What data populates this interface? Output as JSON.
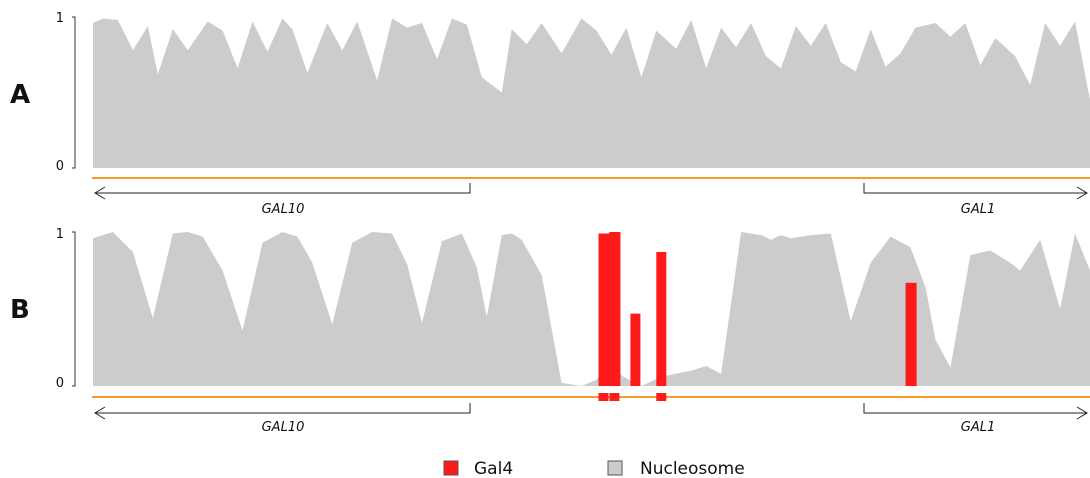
{
  "chart_data": [
    {
      "type": "area",
      "panel": "A",
      "ylim": [
        0,
        1
      ],
      "yticks": [
        "0",
        "1"
      ],
      "genes": {
        "left": "GAL10",
        "right": "GAL1"
      },
      "colors": {
        "nucleosome": "#cccccc",
        "gal4": "#ff1a1a",
        "baseline": "#f39a2b"
      },
      "series": [
        {
          "name": "Nucleosome",
          "x": [
            0,
            0.01,
            0.025,
            0.04,
            0.055,
            0.065,
            0.08,
            0.095,
            0.115,
            0.13,
            0.145,
            0.16,
            0.175,
            0.19,
            0.2,
            0.215,
            0.235,
            0.25,
            0.265,
            0.285,
            0.3,
            0.315,
            0.33,
            0.345,
            0.36,
            0.375,
            0.39,
            0.41,
            0.42,
            0.435,
            0.45,
            0.47,
            0.49,
            0.505,
            0.52,
            0.535,
            0.55,
            0.565,
            0.585,
            0.6,
            0.615,
            0.63,
            0.645,
            0.66,
            0.675,
            0.69,
            0.705,
            0.72,
            0.735,
            0.75,
            0.765,
            0.78,
            0.795,
            0.81,
            0.825,
            0.845,
            0.86,
            0.875,
            0.89,
            0.905,
            0.925,
            0.94,
            0.955,
            0.97,
            0.985,
            1.0
          ],
          "y": [
            0.96,
            0.99,
            0.98,
            0.78,
            0.94,
            0.62,
            0.92,
            0.78,
            0.97,
            0.91,
            0.66,
            0.97,
            0.77,
            0.99,
            0.92,
            0.63,
            0.96,
            0.78,
            0.97,
            0.58,
            0.99,
            0.93,
            0.96,
            0.72,
            0.99,
            0.95,
            0.6,
            0.5,
            0.92,
            0.82,
            0.96,
            0.76,
            0.99,
            0.91,
            0.75,
            0.93,
            0.6,
            0.91,
            0.79,
            0.98,
            0.66,
            0.93,
            0.8,
            0.96,
            0.74,
            0.66,
            0.94,
            0.81,
            0.96,
            0.7,
            0.64,
            0.92,
            0.67,
            0.76,
            0.93,
            0.96,
            0.87,
            0.96,
            0.68,
            0.86,
            0.74,
            0.55,
            0.96,
            0.81,
            0.97,
            0.45
          ]
        }
      ]
    },
    {
      "type": "area",
      "panel": "B",
      "ylim": [
        0,
        1
      ],
      "yticks": [
        "0",
        "1"
      ],
      "genes": {
        "left": "GAL10",
        "right": "GAL1"
      },
      "series": [
        {
          "name": "Nucleosome",
          "x": [
            0,
            0.02,
            0.04,
            0.06,
            0.08,
            0.095,
            0.11,
            0.13,
            0.15,
            0.17,
            0.19,
            0.205,
            0.22,
            0.24,
            0.26,
            0.28,
            0.3,
            0.315,
            0.33,
            0.35,
            0.37,
            0.385,
            0.395,
            0.41,
            0.42,
            0.43,
            0.45,
            0.47,
            0.49,
            0.505,
            0.515,
            0.525,
            0.532,
            0.55,
            0.57,
            0.6,
            0.615,
            0.63,
            0.65,
            0.67,
            0.68,
            0.69,
            0.7,
            0.72,
            0.74,
            0.76,
            0.78,
            0.8,
            0.82,
            0.835,
            0.845,
            0.86,
            0.88,
            0.9,
            0.92,
            0.93,
            0.95,
            0.97,
            0.985,
            1.0
          ],
          "y": [
            0.96,
            1.0,
            0.87,
            0.44,
            0.99,
            1.0,
            0.97,
            0.75,
            0.36,
            0.93,
            1.0,
            0.97,
            0.8,
            0.4,
            0.93,
            1.0,
            0.99,
            0.79,
            0.41,
            0.94,
            0.99,
            0.77,
            0.45,
            0.98,
            0.99,
            0.95,
            0.72,
            0.02,
            0.0,
            0.04,
            0.12,
            0.1,
            0.06,
            0.0,
            0.06,
            0.1,
            0.13,
            0.08,
            1.0,
            0.98,
            0.95,
            0.98,
            0.96,
            0.98,
            0.99,
            0.42,
            0.8,
            0.97,
            0.9,
            0.64,
            0.3,
            0.12,
            0.85,
            0.88,
            0.8,
            0.75,
            0.95,
            0.5,
            0.99,
            0.75
          ]
        },
        {
          "name": "Gal4",
          "bars": [
            {
              "x0": 0.507,
              "x1": 0.518,
              "value": 0.99
            },
            {
              "x0": 0.518,
              "x1": 0.529,
              "value": 1.0
            },
            {
              "x0": 0.539,
              "x1": 0.549,
              "value": 0.47
            },
            {
              "x0": 0.565,
              "x1": 0.575,
              "value": 0.87
            },
            {
              "x0": 0.815,
              "x1": 0.826,
              "value": 0.67
            }
          ],
          "sites": [
            {
              "x0": 0.507,
              "x1": 0.517
            },
            {
              "x0": 0.518,
              "x1": 0.528
            },
            {
              "x0": 0.565,
              "x1": 0.575
            }
          ]
        }
      ]
    }
  ],
  "legend": [
    {
      "label": "Gal4",
      "color": "#ff1a1a"
    },
    {
      "label": "Nucleosome",
      "color": "#cccccc"
    }
  ]
}
